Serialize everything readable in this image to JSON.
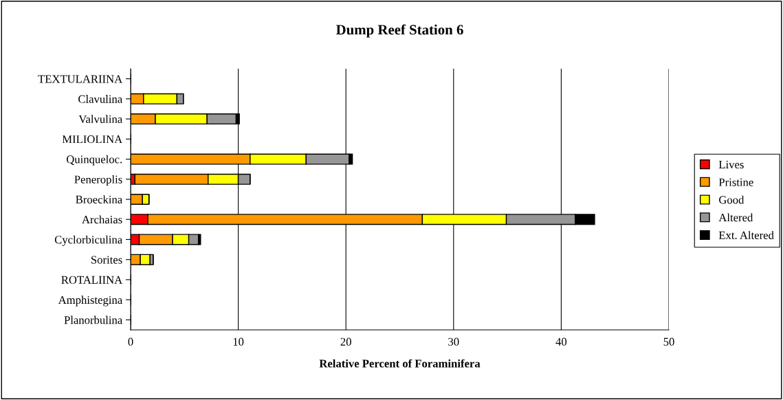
{
  "chart_data": {
    "type": "bar",
    "orientation": "horizontal",
    "stacked": true,
    "title": "Dump Reef Station 6",
    "xlabel": "Relative Percent of Foraminifera",
    "categories": [
      "TEXTULARIINA",
      "Clavulina",
      "Valvulina",
      "MILIOLINA",
      "Quinqueloc.",
      "Peneroplis",
      "Broeckina",
      "Archaias",
      "Cyclorbiculina",
      "Sorites",
      "ROTALIINA",
      "Amphistegina",
      "Planorbulina"
    ],
    "series": [
      {
        "name": "Lives",
        "color": "#ff0000",
        "values": [
          0,
          0,
          0,
          0,
          0,
          0.4,
          0,
          1.6,
          0.8,
          0,
          0,
          0,
          0
        ]
      },
      {
        "name": "Pristine",
        "color": "#ff9900",
        "values": [
          0,
          1.2,
          2.3,
          0,
          11.1,
          6.8,
          1.1,
          25.5,
          3.1,
          0.9,
          0,
          0,
          0
        ]
      },
      {
        "name": "Good",
        "color": "#ffff00",
        "values": [
          0,
          3.1,
          4.8,
          0,
          5.2,
          2.8,
          0.6,
          7.8,
          1.5,
          0.9,
          0,
          0,
          0
        ]
      },
      {
        "name": "Altered",
        "color": "#969696",
        "values": [
          0,
          0.6,
          2.7,
          0,
          4.0,
          1.1,
          0,
          6.4,
          0.9,
          0.3,
          0,
          0,
          0
        ]
      },
      {
        "name": "Ext. Altered",
        "color": "#000000",
        "values": [
          0,
          0,
          0.3,
          0,
          0.3,
          0,
          0,
          1.8,
          0.2,
          0,
          0,
          0,
          0
        ]
      }
    ],
    "xlim": [
      0,
      50
    ],
    "xticks": [
      0,
      10,
      20,
      30,
      40,
      50
    ],
    "grid": "x",
    "legend": "right"
  }
}
